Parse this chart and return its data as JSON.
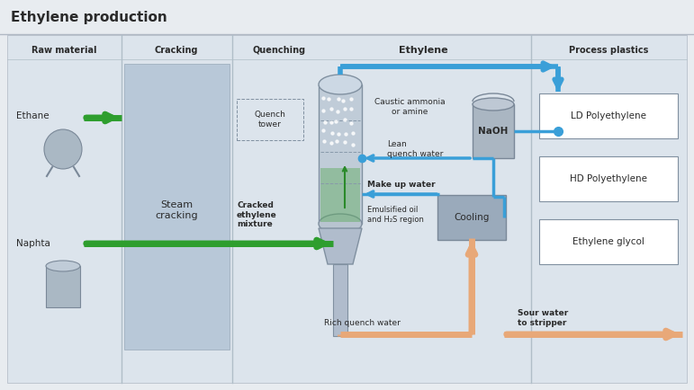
{
  "title": "Ethylene production",
  "bg_color": "#e8ecf0",
  "inner_bg": "#dce4ec",
  "white": "#ffffff",
  "section_headers": [
    "Raw material",
    "Cracking",
    "Quenching",
    "Process plastics"
  ],
  "ethylene_header": "Ethylene",
  "process_plastics": [
    "LD Polyethylene",
    "HD Polyethylene",
    "Ethylene glycol"
  ],
  "cracking_label": "Steam\ncracking",
  "quench_tower_label": "Quench\ntower",
  "naoh_label": "NaOH",
  "caustic_label": "Caustic ammonia\nor amine",
  "lean_quench_label": "Lean\nquench water",
  "makeup_water_label": "Make up water",
  "emulsified_label": "Emulsified oil\nand H₂S region",
  "cracked_label": "Cracked\nethylene\nmixture",
  "rich_quench_label": "Rich quench water",
  "sour_water_label": "Sour water\nto stripper",
  "cooling_label": "Cooling",
  "ethane_label": "Ethane",
  "naphta_label": "Naphta",
  "green_color": "#2e9e2e",
  "blue_color": "#3a9fd8",
  "orange_color": "#e8a878",
  "gray_vessel": "#b0bcc8",
  "gray_vessel_light": "#c8d4dc",
  "cracker_color": "#b8c8d8",
  "text_dark": "#2a2a2a",
  "divider_color": "#b0bec8",
  "cooling_box": "#9aaabb"
}
